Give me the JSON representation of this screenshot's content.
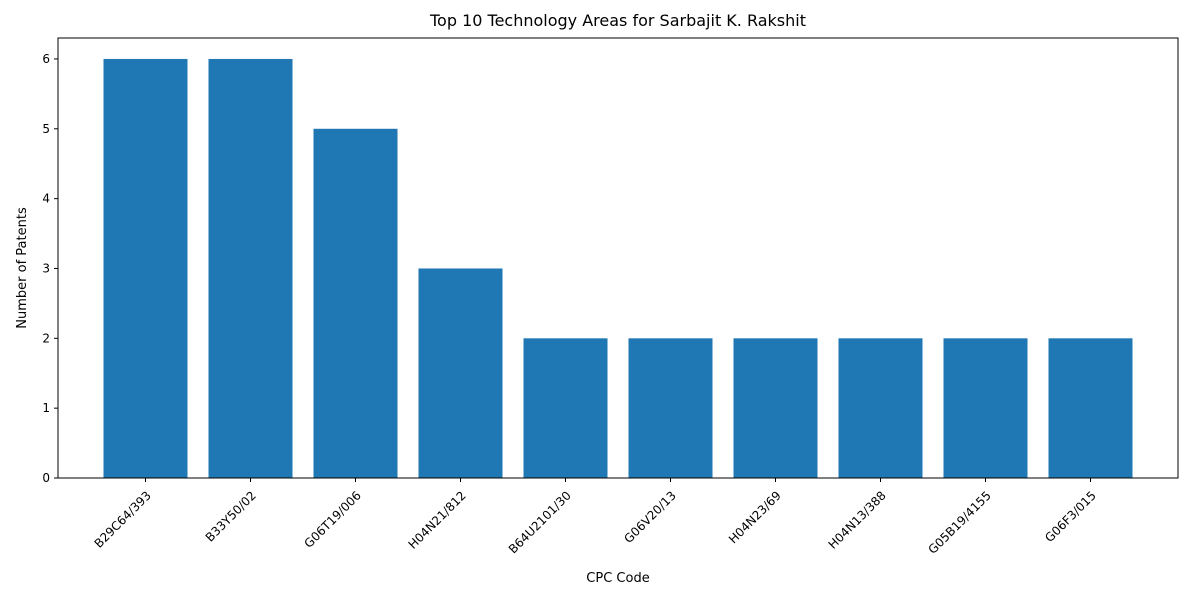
{
  "chart_data": {
    "type": "bar",
    "title": "Top 10 Technology Areas for Sarbajit K. Rakshit",
    "xlabel": "CPC Code",
    "ylabel": "Number of Patents",
    "categories": [
      "B29C64/393",
      "B33Y50/02",
      "G06T19/006",
      "H04N21/812",
      "B64U2101/30",
      "G06V20/13",
      "H04N23/69",
      "H04N13/388",
      "G05B19/4155",
      "G06F3/015"
    ],
    "values": [
      6,
      6,
      5,
      3,
      2,
      2,
      2,
      2,
      2,
      2
    ],
    "ylim": [
      0,
      6.3
    ],
    "yticks": [
      0,
      1,
      2,
      3,
      4,
      5,
      6
    ],
    "grid": false,
    "bar_color": "#1f77b4"
  }
}
